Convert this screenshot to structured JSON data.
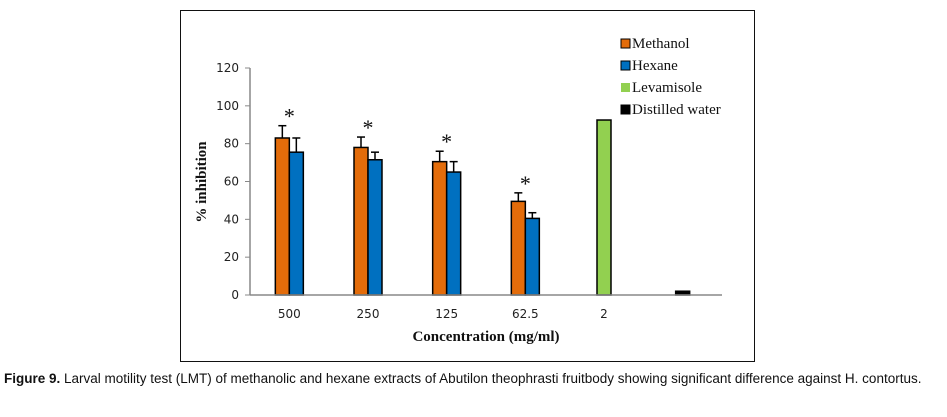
{
  "chart_data": {
    "type": "bar",
    "title": "",
    "xlabel": "Concentration (mg/ml)",
    "ylabel": "% inhibition",
    "ylim": [
      0,
      120
    ],
    "yticks": [
      0,
      20,
      40,
      60,
      80,
      100,
      120
    ],
    "categories": [
      "500",
      "250",
      "125",
      "62.5",
      "2",
      ""
    ],
    "legend_position": "top-right",
    "series": [
      {
        "name": "Methanol",
        "color": "#E36C0A",
        "values": [
          83,
          78,
          70.5,
          49.5,
          null,
          null
        ],
        "errors": [
          6.5,
          5.5,
          5.5,
          4.5,
          null,
          null
        ]
      },
      {
        "name": "Hexane",
        "color": "#0070C0",
        "values": [
          75.5,
          71.5,
          65,
          40.5,
          null,
          null
        ],
        "errors": [
          7.5,
          4,
          5.5,
          3,
          null,
          null
        ]
      },
      {
        "name": "Levamisole",
        "color": "#92D050",
        "values": [
          null,
          null,
          null,
          null,
          92.5,
          null
        ],
        "errors": [
          null,
          null,
          null,
          null,
          null,
          null
        ]
      },
      {
        "name": "Distilled water",
        "color": "#000000",
        "values": [
          null,
          null,
          null,
          null,
          null,
          2
        ],
        "errors": [
          null,
          null,
          null,
          null,
          null,
          null
        ]
      }
    ],
    "significance_markers": [
      {
        "category": "500",
        "symbol": "*"
      },
      {
        "category": "250",
        "symbol": "*"
      },
      {
        "category": "125",
        "symbol": "*"
      },
      {
        "category": "62.5",
        "symbol": "*"
      }
    ],
    "grid": false
  },
  "caption": {
    "label": "Figure 9.",
    "text": " Larval motility test (LMT) of methanolic and hexane extracts of Abutilon theophrasti fruitbody showing significant difference against H. contortus."
  }
}
